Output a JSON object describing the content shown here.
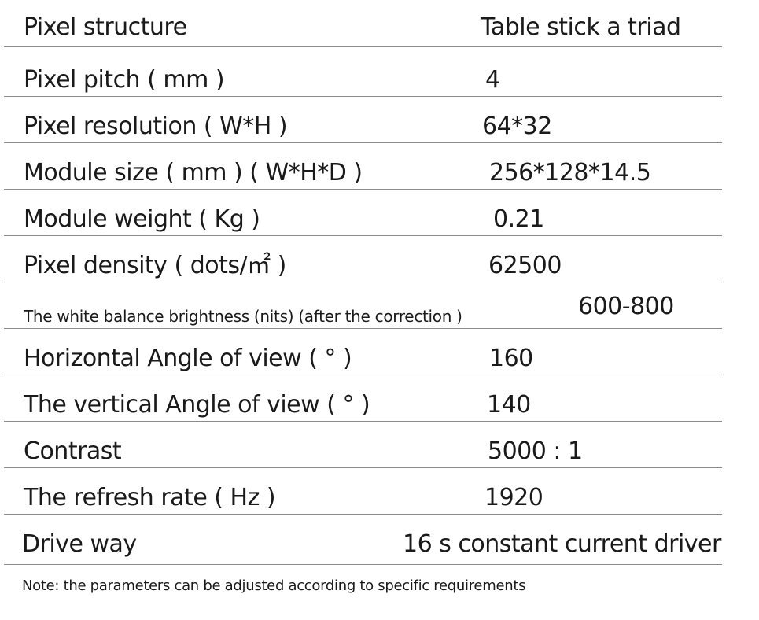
{
  "rows": [
    {
      "label": "Pixel structure",
      "value": "Table stick a triad"
    },
    {
      "label": "Pixel pitch ( mm )",
      "value": "4"
    },
    {
      "label": "Pixel resolution ( W*H )",
      "value": "64*32"
    },
    {
      "label": "Module size ( mm ) ( W*H*D )",
      "value": "256*128*14.5"
    },
    {
      "label": "Module weight ( Kg )",
      "value": "0.21"
    },
    {
      "label": "Pixel density ( dots/㎡ )",
      "value": "62500"
    },
    {
      "label": "The white balance brightness (nits) (after the correction )",
      "value": "600-800"
    },
    {
      "label": "Horizontal Angle of view ( ° )",
      "value": "160"
    },
    {
      "label": "The vertical Angle of view ( ° )",
      "value": "140"
    },
    {
      "label": "Contrast",
      "value": "5000 : 1"
    },
    {
      "label": "The refresh rate ( Hz )",
      "value": "1920"
    },
    {
      "label": "Drive way",
      "value": "16 s constant current driver"
    }
  ],
  "note": "Note: the parameters can be adjusted according to specific requirements"
}
